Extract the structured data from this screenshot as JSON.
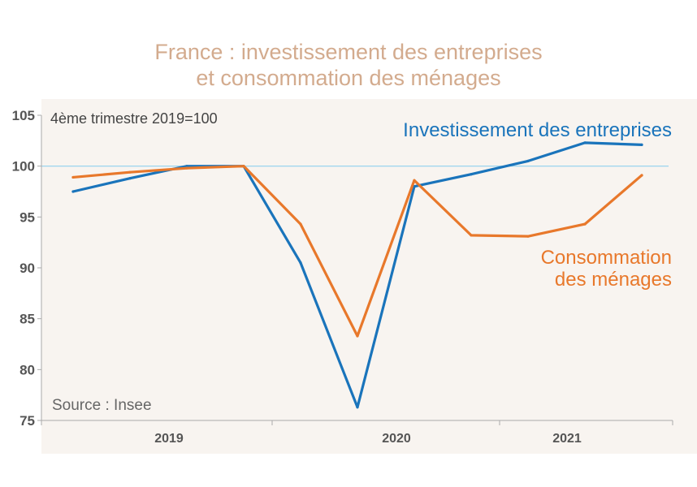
{
  "chart_data": {
    "type": "line",
    "title": [
      "France : investissement des entreprises",
      "et consommation des ménages"
    ],
    "note": "4ème trimestre 2019=100",
    "source": "Source : Insee",
    "ylim": [
      75,
      105
    ],
    "yticks": [
      75,
      80,
      85,
      90,
      95,
      100,
      105
    ],
    "reference_line": 100,
    "x": [
      "2019-Q1",
      "2019-Q2",
      "2019-Q3",
      "2019-Q4",
      "2020-Q1",
      "2020-Q2",
      "2020-Q3",
      "2020-Q4",
      "2021-Q1",
      "2021-Q2",
      "2021-Q3"
    ],
    "xlim": [
      "2019-Q1",
      "2021-Q3"
    ],
    "year_labels": [
      {
        "label": "2019",
        "center": "2019-Q3"
      },
      {
        "label": "2020",
        "center": "2020-Q3"
      },
      {
        "label": "2021",
        "center": "2021-Q2"
      }
    ],
    "series": [
      {
        "name": "Investissement des entreprises",
        "label_lines": [
          "Investissement des entreprises"
        ],
        "color": "#1a74bb",
        "values": [
          97.5,
          98.8,
          100.0,
          100.0,
          90.5,
          76.3,
          98.0,
          99.2,
          100.5,
          102.3,
          102.1
        ]
      },
      {
        "name": "Consommation des ménages",
        "label_lines": [
          "Consommation",
          "des ménages"
        ],
        "color": "#e8782b",
        "values": [
          98.9,
          99.4,
          99.8,
          100.0,
          94.3,
          83.3,
          98.6,
          93.2,
          93.1,
          94.3,
          99.1
        ]
      }
    ],
    "colors": {
      "plot_background": "#f8f4f0",
      "reference_line": "#8fd0ee",
      "axis": "#aaaaaa"
    }
  }
}
